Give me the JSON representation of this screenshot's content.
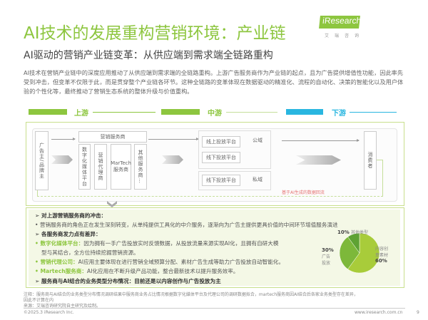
{
  "header": {
    "title": "AI技术的发展重构营销环境：产业链",
    "subtitle": "AI驱动的营销产业链变革：从供应端到需求端全链路重构",
    "intro": "AI技术在营销产业链中的深度应用推动了从供应端到需求端的全链路重构。上游广告服务商作为产业链的起点，且为广告提供增值性功能，因此率先受到冲击，但变革不仅限于此，而是贯穿整个产业链各环节。这种全链路的变革体现在数据驱动的精准化、流程的自动化、决策的智能化以及用户体验的个性化等，最终推动了营销生态系统的整体升级与价值重构。"
  },
  "logo": {
    "text": "iResearch",
    "sub": "艾瑞咨询"
  },
  "stages": [
    {
      "label": "上游",
      "color": "#8dc63f"
    },
    {
      "label": "中游",
      "color": "#8dc63f"
    },
    {
      "label": "下游",
      "color": "#29b6e0"
    }
  ],
  "diagram": {
    "advertiser": "广告主/品牌主",
    "service_provider": "营销服务商",
    "providers": [
      "数字化媒体平台",
      "营销代理商",
      "MarTech服务商",
      "其他服务商…"
    ],
    "public_domain": "公域",
    "private_domain": "私域",
    "online_platform": "线上投放平台",
    "offline_platform": "线下投放平台",
    "offline_platform_private": "线下投放平台",
    "consumer": "消费者",
    "feedback": "基于AI生成的数据回流"
  },
  "analysis": {
    "h1": "对上游营销服务商的冲击：",
    "p1": "营销服务商的角色正在发生深刻转变，从单纯提供工具化的中介服务，逐渐向为广告主提供更具价值的中间环节增值服务演进",
    "h2": "各服务商发力点有差异：",
    "items": [
      {
        "name": "数字化媒体平台：",
        "text": "因为拥有一手广告投放实时反馈数据，从投放流量来源实现AI化，且拥有自研大模",
        "text2": "型与其结合，全方位持续挖掘营销资源。"
      },
      {
        "name": "营销代理公司：",
        "text": "AI应用主要体现在进行营销全域预算分配、素材广告生成等助力广告投放自动智能化。"
      },
      {
        "name": "Martech服务商：",
        "text": "AI化应用在不断升级产品功能，整合最新技术以提升服务效率。"
      }
    ],
    "h3": "服务商与AI结合的业务类型分布情况：目前还是以内容创作与广告投放为主"
  },
  "chart_data": {
    "type": "pie",
    "slices": [
      {
        "name": "内容创意素材",
        "value": 60,
        "label": "60%",
        "color": "#a8cc3a"
      },
      {
        "name": "广告投放",
        "value": 30,
        "label": "30%",
        "color": "#7db83a"
      },
      {
        "name": "其他类型",
        "value": 10,
        "label": "10%",
        "color": "#5ea233"
      }
    ]
  },
  "footer": {
    "note": "注释：服务商与AI结合的业务类型分布情况调研结果中服务商业务占比情况根据数字化媒体平台及代理公司的调研数据拟合，martech服务商因AI结合后各家业务类型存在差异，",
    "note2": "因此不计算在内",
    "source": "来源：艾瑞咨询研究院自主研究及绘制。",
    "copyright": "©2025.3 iResearch Inc.",
    "url": "www.iresearch.com.cn",
    "page": "9"
  }
}
